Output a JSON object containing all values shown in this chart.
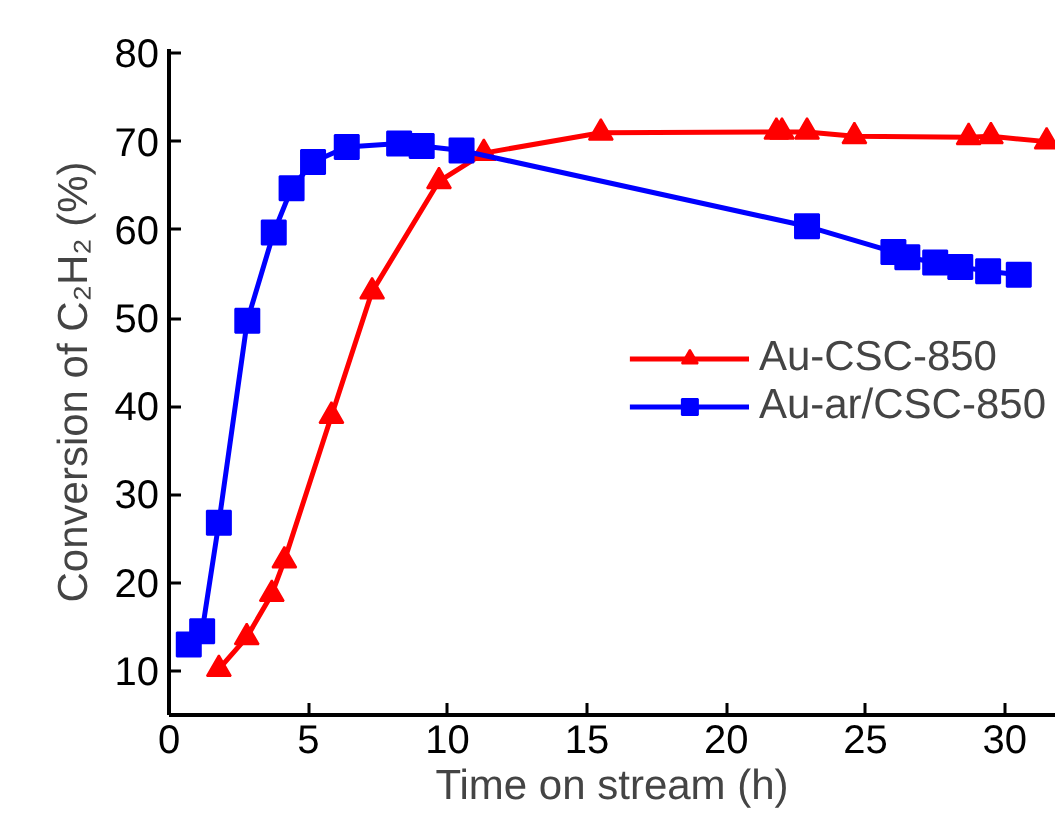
{
  "chart_data": {
    "type": "line",
    "xlabel": "Time on stream (h)",
    "ylabel": "Conversion of C₂H₂ (%)",
    "xlim": [
      0,
      31.8
    ],
    "ylim": [
      5,
      80.5
    ],
    "xticks": [
      0,
      5,
      10,
      15,
      20,
      25,
      30
    ],
    "yticks": [
      10,
      20,
      30,
      40,
      50,
      60,
      70,
      80
    ],
    "grid": false,
    "legend": "right",
    "line_style": "solid",
    "series": [
      {
        "name": "Au-CSC-850",
        "color": "#ff0000",
        "marker": "triangle",
        "x": [
          1.79,
          2.79,
          3.69,
          4.14,
          5.83,
          7.29,
          9.69,
          11.3,
          15.5,
          21.8,
          22.0,
          22.9,
          24.6,
          28.7,
          29.5,
          31.5
        ],
        "values": [
          10.2,
          13.8,
          18.7,
          22.5,
          38.9,
          53.0,
          65.5,
          68.7,
          71.0,
          71.1,
          71.1,
          71.1,
          70.6,
          70.5,
          70.6,
          70.0
        ]
      },
      {
        "name": "Au-ar/CSC-850",
        "color": "#0000ff",
        "marker": "square",
        "x": [
          0.71,
          1.19,
          1.79,
          2.81,
          3.76,
          4.4,
          5.17,
          6.38,
          8.26,
          9.07,
          10.5,
          22.9,
          26.0,
          26.5,
          27.5,
          28.4,
          29.4,
          30.5
        ],
        "values": [
          13.0,
          14.5,
          26.8,
          49.7,
          59.7,
          64.7,
          67.7,
          69.4,
          69.8,
          69.5,
          69.0,
          60.4,
          57.5,
          56.9,
          56.3,
          55.8,
          55.3,
          54.9
        ]
      }
    ]
  }
}
